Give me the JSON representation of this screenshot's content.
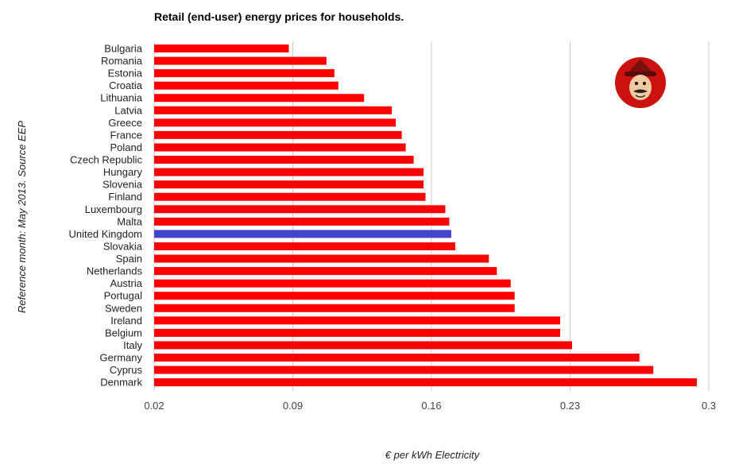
{
  "chart_data": {
    "type": "bar",
    "orientation": "horizontal",
    "title": "Retail (end-user) energy prices for households.",
    "xlabel": "€ per kWh Electricity",
    "ylabel": "Reference month: May 2013. Source EEP",
    "xlim": [
      0.02,
      0.3
    ],
    "xticks": [
      "0.02",
      "0.09",
      "0.16",
      "0.23",
      "0.3"
    ],
    "grid": true,
    "categories": [
      "Bulgaria",
      "Romania",
      "Estonia",
      "Croatia",
      "Lithuania",
      "Latvia",
      "Greece",
      "France",
      "Poland",
      "Czech Republic",
      "Hungary",
      "Slovenia",
      "Finland",
      "Luxembourg",
      "Malta",
      "United Kingdom",
      "Slovakia",
      "Spain",
      "Netherlands",
      "Austria",
      "Portugal",
      "Sweden",
      "Ireland",
      "Belgium",
      "Italy",
      "Germany",
      "Cyprus",
      "Denmark"
    ],
    "values": [
      0.088,
      0.107,
      0.111,
      0.113,
      0.126,
      0.14,
      0.142,
      0.145,
      0.147,
      0.151,
      0.156,
      0.156,
      0.157,
      0.167,
      0.169,
      0.17,
      0.172,
      0.189,
      0.193,
      0.2,
      0.202,
      0.202,
      0.225,
      0.225,
      0.231,
      0.265,
      0.272,
      0.294
    ],
    "colors": {
      "default": "#ff0000",
      "highlight": "#4444cc"
    },
    "highlight": "United Kingdom"
  },
  "logo": {
    "icon": "mascot-face-icon",
    "background": "#cc1111"
  }
}
